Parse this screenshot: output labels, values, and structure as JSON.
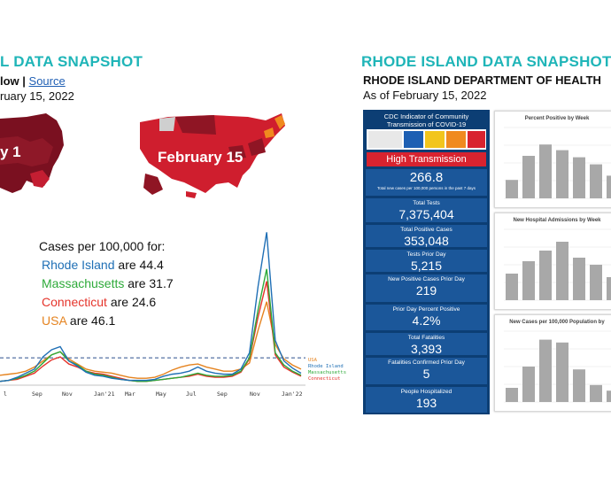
{
  "left": {
    "title": "L DATA SNAPSHOT",
    "subtitle_prefix": "low | ",
    "subtitle_link": "Source",
    "date_line": "ruary 15, 2022",
    "map_left_label": "y 1",
    "map_right_label": "February 15",
    "cases_heading": "Cases per 100,000 for:",
    "cases": [
      {
        "name": "Rhode Island",
        "verb": " are ",
        "value": "44.4",
        "color": "#1f6fb5"
      },
      {
        "name": "Massachusetts",
        "verb": " are ",
        "value": "31.7",
        "color": "#2eaa3a"
      },
      {
        "name": "Connecticut",
        "verb": " are ",
        "value": "24.6",
        "color": "#e5342b"
      },
      {
        "name": "USA",
        "verb": " are ",
        "value": "46.1",
        "color": "#e5831f"
      }
    ],
    "chart_data": {
      "type": "line",
      "x_tick_labels": [
        "l",
        "Sep",
        "Nov",
        "Jan'21",
        "Mar",
        "May",
        "Jul",
        "Sep",
        "Nov",
        "Jan'22"
      ],
      "series": [
        {
          "name": "Rhode Island",
          "color": "#1f6fb5",
          "values": [
            2,
            3,
            6,
            10,
            14,
            26,
            33,
            36,
            22,
            17,
            11,
            8,
            7,
            5,
            4,
            3,
            3,
            3,
            4,
            7,
            9,
            10,
            12,
            16,
            12,
            10,
            9,
            9,
            14,
            30,
            95,
            148,
            42,
            22,
            15,
            10
          ]
        },
        {
          "name": "Massachusetts",
          "color": "#2eaa3a",
          "values": [
            2,
            3,
            5,
            8,
            12,
            20,
            28,
            31,
            22,
            18,
            12,
            9,
            8,
            6,
            4,
            3,
            2,
            2,
            3,
            4,
            5,
            6,
            8,
            10,
            8,
            7,
            7,
            8,
            12,
            25,
            72,
            112,
            30,
            18,
            12,
            8
          ]
        },
        {
          "name": "Connecticut",
          "color": "#e5342b",
          "values": [
            2,
            3,
            4,
            7,
            10,
            17,
            23,
            26,
            19,
            16,
            12,
            10,
            9,
            7,
            5,
            3,
            2,
            2,
            3,
            4,
            5,
            6,
            7,
            9,
            7,
            6,
            6,
            7,
            11,
            24,
            65,
            100,
            28,
            16,
            11,
            7
          ]
        },
        {
          "name": "USA",
          "color": "#e5831f",
          "values": [
            8,
            9,
            10,
            12,
            16,
            22,
            28,
            31,
            24,
            19,
            14,
            12,
            11,
            10,
            8,
            6,
            5,
            5,
            6,
            9,
            13,
            16,
            18,
            19,
            16,
            14,
            12,
            12,
            14,
            20,
            52,
            80,
            38,
            24,
            18,
            14
          ]
        }
      ],
      "end_labels": [
        "USA",
        "Rhode Island",
        "Massachusetts",
        "Connecticut"
      ],
      "reference_line": "dashed"
    }
  },
  "right": {
    "title": "RHODE ISLAND DATA SNAPSHOT",
    "org": "RHODE ISLAND DEPARTMENT OF HEALTH",
    "date_line": "As of February 15, 2022",
    "cdc_header": "CDC Indicator of Community Transmission of COVID-19",
    "transmission_level": "High Transmission",
    "rate_value": "266.8",
    "rate_caption": "Total new cases per 100,000 persons in the past 7 days",
    "stats": [
      {
        "label": "Total Tests",
        "value": "7,375,404"
      },
      {
        "label": "Total Positive Cases",
        "value": "353,048"
      },
      {
        "label": "Tests Prior Day",
        "value": "5,215"
      },
      {
        "label": "New Positive Cases Prior Day",
        "value": "219"
      },
      {
        "label": "Prior Day Percent Positive",
        "value": "4.2%"
      },
      {
        "label": "Total Fatalities",
        "value": "3,393"
      },
      {
        "label": "Fatalities Confirmed Prior Day",
        "value": "5"
      },
      {
        "label": "People Hospitalized",
        "value": "193"
      }
    ],
    "panels": [
      {
        "title": "Percent Positive by Week",
        "values": [
          6.5,
          15,
          19,
          17,
          14.5,
          12,
          8
        ]
      },
      {
        "title": "New Hospital Admissions by Week",
        "values": [
          150,
          220,
          280,
          330,
          240,
          200,
          130
        ]
      },
      {
        "title": "New Cases per 100,000 Population by",
        "values": [
          10,
          25,
          44,
          42,
          23,
          12,
          8
        ]
      }
    ]
  }
}
